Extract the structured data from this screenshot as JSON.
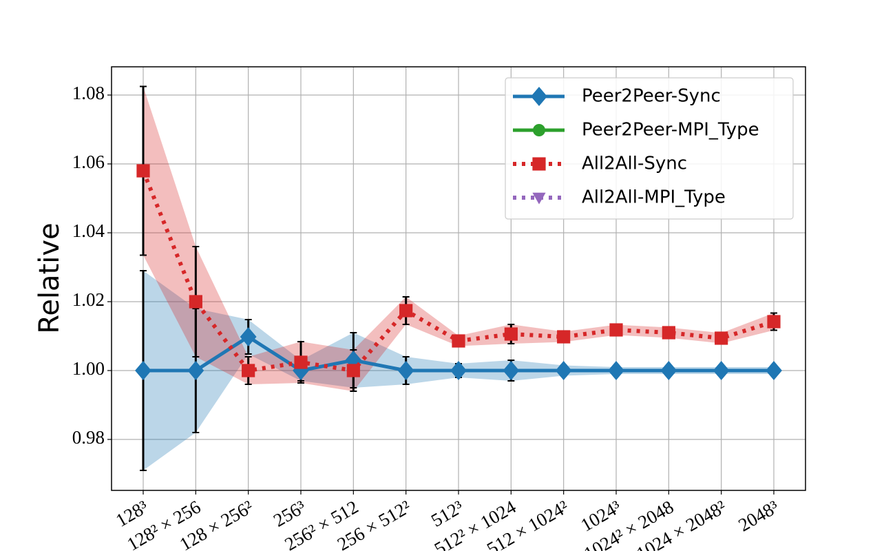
{
  "chart_data": {
    "type": "line",
    "ylabel": "Relative",
    "categories": [
      "128³",
      "128² × 256",
      "128 × 256²",
      "256³",
      "256² × 512",
      "256 × 512²",
      "512³",
      "512² × 1024",
      "512 × 1024²",
      "1024³",
      "1024² × 2048",
      "1024 × 2048²",
      "2048³"
    ],
    "ylim": [
      0.9652,
      1.0882
    ],
    "yticks": [
      0.98,
      {
        "value": 1,
        "label": "1.00"
      },
      1.02,
      1.04,
      1.06,
      1.08
    ],
    "grid": true,
    "legend": "upper right",
    "series": [
      {
        "name": "Peer2Peer-Sync",
        "color": "#1f77b4",
        "marker": "diamond",
        "linestyle": "solid",
        "values": [
          1.0,
          1.0,
          1.0098,
          1.0,
          1.003,
          1.0,
          1.0,
          1.0,
          1.0,
          1.0,
          1.0,
          1.0,
          1.0
        ],
        "errors": [
          0.029,
          0.018,
          0.005,
          0.003,
          0.008,
          0.004,
          0.002,
          0.003,
          0.0015,
          0.001,
          0.001,
          0.001,
          0.001
        ]
      },
      {
        "name": "Peer2Peer-MPI_Type",
        "color": "#2ca02c",
        "marker": "circle",
        "linestyle": "solid",
        "values": [
          null,
          null,
          null,
          null,
          null,
          null,
          null,
          null,
          null,
          null,
          null,
          null,
          null
        ]
      },
      {
        "name": "All2All-Sync",
        "color": "#d62728",
        "marker": "square",
        "linestyle": "dotted",
        "values": [
          1.058,
          1.02,
          1.0,
          1.0024,
          1.0,
          1.0174,
          1.0086,
          1.0106,
          1.0098,
          1.0118,
          1.011,
          1.0094,
          1.0142
        ],
        "errors": [
          0.0245,
          0.016,
          0.004,
          0.006,
          0.006,
          0.004,
          0.0015,
          0.0028,
          0.0015,
          0.0015,
          0.0015,
          0.0015,
          0.0025
        ]
      },
      {
        "name": "All2All-MPI_Type",
        "color": "#9467bd",
        "marker": "triangle-down",
        "linestyle": "dotted",
        "values": [
          null,
          null,
          null,
          null,
          null,
          null,
          null,
          null,
          null,
          null,
          null,
          null,
          null
        ]
      }
    ]
  }
}
